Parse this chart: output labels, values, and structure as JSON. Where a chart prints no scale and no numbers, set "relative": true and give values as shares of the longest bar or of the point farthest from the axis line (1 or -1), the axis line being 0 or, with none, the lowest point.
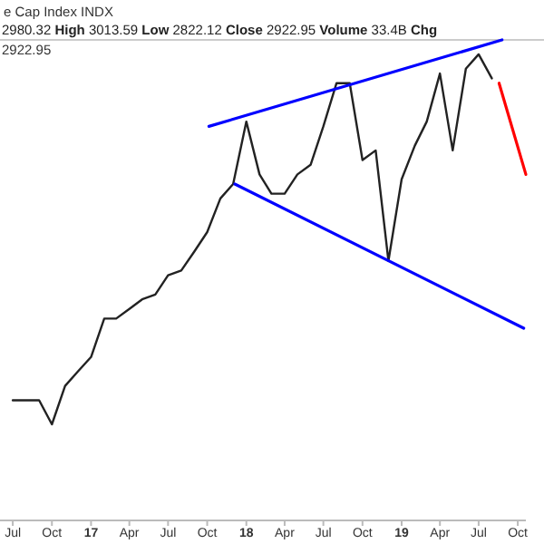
{
  "chart_data": {
    "type": "line",
    "title": "e Cap Index  INDX",
    "subtitle": "2980.32 High 3013.59 Low 2822.12 Close 2922.95 Volume 33.4B Chg",
    "annotations": [
      "2922.95"
    ],
    "relative": true,
    "xlim": [
      "2016-06-01",
      "2019-10-20"
    ],
    "xticks": [
      {
        "value": "2016-07",
        "label": "Jul"
      },
      {
        "value": "2016-10",
        "label": "Oct"
      },
      {
        "value": "2017-01",
        "label": "17"
      },
      {
        "value": "2017-04",
        "label": "Apr"
      },
      {
        "value": "2017-07",
        "label": "Jul"
      },
      {
        "value": "2017-10",
        "label": "Oct"
      },
      {
        "value": "2018-01",
        "label": "18"
      },
      {
        "value": "2018-04",
        "label": "Apr"
      },
      {
        "value": "2018-07",
        "label": "Jul"
      },
      {
        "value": "2018-10",
        "label": "Oct"
      },
      {
        "value": "2019-01",
        "label": "19"
      },
      {
        "value": "2019-04",
        "label": "Apr"
      },
      {
        "value": "2019-07",
        "label": "Jul"
      },
      {
        "value": "2019-10",
        "label": "Oct"
      }
    ],
    "series": [
      {
        "color": "#222222",
        "x": [
          "2016-07",
          "2016-08",
          "2016-09",
          "2016-10",
          "2016-11",
          "2016-12",
          "2017-01",
          "2017-02",
          "2017-03",
          "2017-04",
          "2017-05",
          "2017-06",
          "2017-07",
          "2017-08",
          "2017-09",
          "2017-10",
          "2017-11",
          "2017-12",
          "2018-01",
          "2018-02",
          "2018-03",
          "2018-04",
          "2018-05",
          "2018-06",
          "2018-07",
          "2018-08",
          "2018-09",
          "2018-10",
          "2018-11",
          "2018-12",
          "2019-01",
          "2019-02",
          "2019-03",
          "2019-04",
          "2019-05",
          "2019-06",
          "2019-07",
          "2019-08"
        ],
        "values": [
          0.25,
          0.25,
          0.25,
          0.2,
          0.28,
          0.31,
          0.34,
          0.42,
          0.42,
          0.44,
          0.46,
          0.47,
          0.51,
          0.52,
          0.56,
          0.6,
          0.67,
          0.7,
          0.83,
          0.72,
          0.68,
          0.68,
          0.72,
          0.74,
          0.82,
          0.91,
          0.91,
          0.75,
          0.77,
          0.54,
          0.71,
          0.78,
          0.83,
          0.93,
          0.77,
          0.94,
          0.97,
          0.92
        ]
      },
      {
        "type": "line",
        "color": "#0000ff",
        "x": [
          "2017-10-05",
          "2019-08-25"
        ],
        "values": [
          0.82,
          1
        ]
      },
      {
        "type": "line",
        "color": "#0000ff",
        "x": [
          "2017-12-05",
          "2019-10-15"
        ],
        "values": [
          0.7,
          0.4
        ]
      },
      {
        "type": "line",
        "color": "#ff0000",
        "x": [
          "2019-08-18",
          "2019-10-20"
        ],
        "values": [
          0.91,
          0.72
        ]
      }
    ]
  }
}
